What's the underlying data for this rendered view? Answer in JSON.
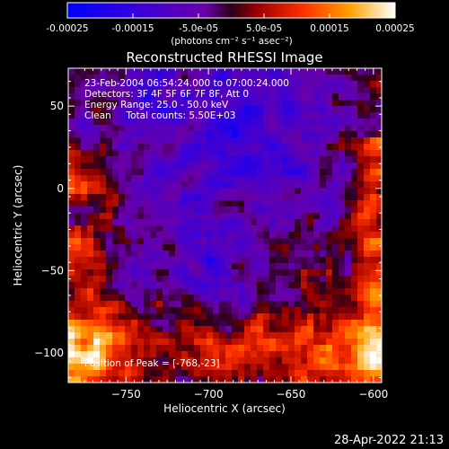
{
  "chart_data": {
    "type": "heatmap",
    "title": "Reconstructed RHESSI Image",
    "xlabel": "Heliocentric X (arcsec)",
    "ylabel": "Heliocentric Y (arcsec)",
    "xlim": [
      -785,
      -595
    ],
    "ylim": [
      -118,
      73
    ],
    "xticks": [
      -750,
      -700,
      -650,
      -600
    ],
    "yticks": [
      -100,
      -50,
      0,
      50
    ],
    "colorbar": {
      "range": [
        -0.00025,
        0.00025
      ],
      "tick_labels": [
        "-0.00025",
        "-0.00015",
        "-5.0e-05",
        "5.0e-05",
        "0.00015",
        "0.00025"
      ],
      "tick_values": [
        -0.00025,
        -0.00015,
        -5e-05,
        5e-05,
        0.00015,
        0.00025
      ],
      "label": "(photons cm⁻² s⁻¹ asec⁻²)"
    },
    "annotations": [
      "23-Feb-2004 06:54:24.000 to 07:00:24.000",
      "Detectors: 3F 4F 5F 6F 7F 8F, Att 0",
      "Energy Range: 25.0 - 50.0 keV",
      "Clean     Total counts: 5.50E+03"
    ],
    "peak_label": "Position of Peak = [-768,-23]",
    "peak": [
      -768,
      -23
    ]
  },
  "footer_timestamp": "28-Apr-2022 21:13"
}
